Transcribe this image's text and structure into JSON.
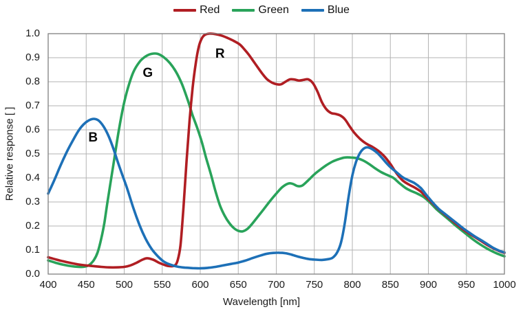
{
  "chart_data": {
    "type": "line",
    "title": "",
    "xlabel": "Wavelength [nm]",
    "ylabel": "Relative response [ ]",
    "xlim": [
      400,
      1000
    ],
    "ylim": [
      0.0,
      1.0
    ],
    "x_ticks": [
      "400",
      "450",
      "500",
      "550",
      "600",
      "650",
      "700",
      "750",
      "800",
      "850",
      "900",
      "950",
      "1000"
    ],
    "y_ticks": [
      "0.0",
      "0.1",
      "0.2",
      "0.3",
      "0.4",
      "0.5",
      "0.6",
      "0.7",
      "0.8",
      "0.9",
      "1.0"
    ],
    "grid": true,
    "grid_color": "#b3b3b3",
    "border_color": "#808080",
    "legend_position": "top-center",
    "annotations": [
      {
        "text": "B",
        "x": 459,
        "y": 0.565
      },
      {
        "text": "G",
        "x": 531,
        "y": 0.835
      },
      {
        "text": "R",
        "x": 626,
        "y": 0.915
      }
    ],
    "series": [
      {
        "name": "Green",
        "color": "#29a35a",
        "points": [
          [
            400,
            0.057
          ],
          [
            410,
            0.047
          ],
          [
            420,
            0.039
          ],
          [
            430,
            0.033
          ],
          [
            440,
            0.03
          ],
          [
            448,
            0.031
          ],
          [
            454,
            0.038
          ],
          [
            460,
            0.058
          ],
          [
            465,
            0.09
          ],
          [
            470,
            0.15
          ],
          [
            474,
            0.215
          ],
          [
            478,
            0.3
          ],
          [
            483,
            0.4
          ],
          [
            488,
            0.5
          ],
          [
            493,
            0.6
          ],
          [
            499,
            0.7
          ],
          [
            505,
            0.775
          ],
          [
            512,
            0.84
          ],
          [
            520,
            0.882
          ],
          [
            528,
            0.905
          ],
          [
            536,
            0.916
          ],
          [
            544,
            0.916
          ],
          [
            552,
            0.902
          ],
          [
            560,
            0.878
          ],
          [
            568,
            0.842
          ],
          [
            576,
            0.79
          ],
          [
            584,
            0.72
          ],
          [
            590,
            0.66
          ],
          [
            596,
            0.608
          ],
          [
            602,
            0.55
          ],
          [
            608,
            0.48
          ],
          [
            614,
            0.415
          ],
          [
            620,
            0.345
          ],
          [
            626,
            0.285
          ],
          [
            632,
            0.243
          ],
          [
            638,
            0.213
          ],
          [
            644,
            0.192
          ],
          [
            650,
            0.18
          ],
          [
            656,
            0.178
          ],
          [
            662,
            0.188
          ],
          [
            668,
            0.208
          ],
          [
            676,
            0.24
          ],
          [
            684,
            0.272
          ],
          [
            692,
            0.305
          ],
          [
            700,
            0.335
          ],
          [
            708,
            0.362
          ],
          [
            716,
            0.377
          ],
          [
            722,
            0.375
          ],
          [
            728,
            0.366
          ],
          [
            734,
            0.368
          ],
          [
            742,
            0.39
          ],
          [
            750,
            0.415
          ],
          [
            758,
            0.435
          ],
          [
            766,
            0.453
          ],
          [
            774,
            0.468
          ],
          [
            782,
            0.478
          ],
          [
            790,
            0.485
          ],
          [
            798,
            0.485
          ],
          [
            806,
            0.482
          ],
          [
            814,
            0.473
          ],
          [
            822,
            0.458
          ],
          [
            830,
            0.44
          ],
          [
            838,
            0.424
          ],
          [
            846,
            0.412
          ],
          [
            854,
            0.4
          ],
          [
            862,
            0.378
          ],
          [
            870,
            0.358
          ],
          [
            878,
            0.345
          ],
          [
            886,
            0.334
          ],
          [
            894,
            0.32
          ],
          [
            902,
            0.298
          ],
          [
            910,
            0.272
          ],
          [
            918,
            0.25
          ],
          [
            926,
            0.229
          ],
          [
            934,
            0.207
          ],
          [
            942,
            0.186
          ],
          [
            950,
            0.166
          ],
          [
            958,
            0.146
          ],
          [
            966,
            0.128
          ],
          [
            974,
            0.112
          ],
          [
            982,
            0.098
          ],
          [
            990,
            0.086
          ],
          [
            1000,
            0.074
          ]
        ]
      },
      {
        "name": "Red",
        "color": "#b01e23",
        "points": [
          [
            400,
            0.07
          ],
          [
            410,
            0.061
          ],
          [
            420,
            0.053
          ],
          [
            430,
            0.046
          ],
          [
            440,
            0.04
          ],
          [
            450,
            0.036
          ],
          [
            460,
            0.033
          ],
          [
            470,
            0.03
          ],
          [
            480,
            0.028
          ],
          [
            490,
            0.028
          ],
          [
            500,
            0.03
          ],
          [
            508,
            0.036
          ],
          [
            516,
            0.047
          ],
          [
            524,
            0.06
          ],
          [
            530,
            0.066
          ],
          [
            538,
            0.06
          ],
          [
            546,
            0.047
          ],
          [
            554,
            0.037
          ],
          [
            560,
            0.033
          ],
          [
            566,
            0.035
          ],
          [
            570,
            0.055
          ],
          [
            574,
            0.12
          ],
          [
            578,
            0.28
          ],
          [
            582,
            0.47
          ],
          [
            586,
            0.64
          ],
          [
            590,
            0.775
          ],
          [
            594,
            0.875
          ],
          [
            598,
            0.945
          ],
          [
            602,
            0.98
          ],
          [
            606,
            0.995
          ],
          [
            612,
            1.0
          ],
          [
            620,
            0.998
          ],
          [
            628,
            0.992
          ],
          [
            636,
            0.982
          ],
          [
            644,
            0.97
          ],
          [
            652,
            0.955
          ],
          [
            658,
            0.935
          ],
          [
            664,
            0.912
          ],
          [
            670,
            0.885
          ],
          [
            676,
            0.858
          ],
          [
            682,
            0.832
          ],
          [
            688,
            0.81
          ],
          [
            694,
            0.797
          ],
          [
            700,
            0.79
          ],
          [
            706,
            0.789
          ],
          [
            712,
            0.8
          ],
          [
            718,
            0.81
          ],
          [
            724,
            0.809
          ],
          [
            730,
            0.805
          ],
          [
            736,
            0.808
          ],
          [
            742,
            0.81
          ],
          [
            748,
            0.795
          ],
          [
            754,
            0.76
          ],
          [
            760,
            0.715
          ],
          [
            766,
            0.685
          ],
          [
            772,
            0.67
          ],
          [
            778,
            0.666
          ],
          [
            784,
            0.66
          ],
          [
            790,
            0.645
          ],
          [
            796,
            0.617
          ],
          [
            802,
            0.59
          ],
          [
            810,
            0.563
          ],
          [
            818,
            0.543
          ],
          [
            826,
            0.53
          ],
          [
            834,
            0.513
          ],
          [
            842,
            0.49
          ],
          [
            850,
            0.458
          ],
          [
            858,
            0.42
          ],
          [
            866,
            0.39
          ],
          [
            874,
            0.373
          ],
          [
            882,
            0.36
          ],
          [
            890,
            0.343
          ],
          [
            898,
            0.318
          ],
          [
            906,
            0.293
          ],
          [
            914,
            0.268
          ],
          [
            922,
            0.247
          ],
          [
            930,
            0.226
          ],
          [
            938,
            0.205
          ],
          [
            946,
            0.185
          ],
          [
            954,
            0.168
          ],
          [
            962,
            0.152
          ],
          [
            970,
            0.136
          ],
          [
            978,
            0.12
          ],
          [
            986,
            0.106
          ],
          [
            994,
            0.095
          ],
          [
            1000,
            0.088
          ]
        ]
      },
      {
        "name": "Blue",
        "color": "#1d70b7",
        "points": [
          [
            400,
            0.335
          ],
          [
            408,
            0.39
          ],
          [
            416,
            0.45
          ],
          [
            424,
            0.505
          ],
          [
            432,
            0.553
          ],
          [
            440,
            0.597
          ],
          [
            448,
            0.627
          ],
          [
            456,
            0.643
          ],
          [
            462,
            0.645
          ],
          [
            468,
            0.634
          ],
          [
            474,
            0.608
          ],
          [
            480,
            0.57
          ],
          [
            486,
            0.52
          ],
          [
            492,
            0.462
          ],
          [
            498,
            0.408
          ],
          [
            504,
            0.355
          ],
          [
            512,
            0.275
          ],
          [
            520,
            0.205
          ],
          [
            528,
            0.148
          ],
          [
            536,
            0.105
          ],
          [
            544,
            0.075
          ],
          [
            552,
            0.052
          ],
          [
            560,
            0.04
          ],
          [
            570,
            0.031
          ],
          [
            580,
            0.027
          ],
          [
            590,
            0.025
          ],
          [
            600,
            0.024
          ],
          [
            610,
            0.026
          ],
          [
            620,
            0.03
          ],
          [
            630,
            0.036
          ],
          [
            640,
            0.042
          ],
          [
            650,
            0.048
          ],
          [
            660,
            0.057
          ],
          [
            670,
            0.068
          ],
          [
            680,
            0.078
          ],
          [
            688,
            0.085
          ],
          [
            696,
            0.088
          ],
          [
            704,
            0.089
          ],
          [
            712,
            0.087
          ],
          [
            720,
            0.081
          ],
          [
            728,
            0.073
          ],
          [
            736,
            0.067
          ],
          [
            744,
            0.062
          ],
          [
            752,
            0.06
          ],
          [
            760,
            0.059
          ],
          [
            768,
            0.062
          ],
          [
            774,
            0.068
          ],
          [
            780,
            0.09
          ],
          [
            785,
            0.13
          ],
          [
            790,
            0.21
          ],
          [
            795,
            0.32
          ],
          [
            800,
            0.41
          ],
          [
            805,
            0.468
          ],
          [
            810,
            0.503
          ],
          [
            815,
            0.522
          ],
          [
            820,
            0.527
          ],
          [
            826,
            0.52
          ],
          [
            832,
            0.506
          ],
          [
            838,
            0.487
          ],
          [
            844,
            0.465
          ],
          [
            850,
            0.445
          ],
          [
            858,
            0.424
          ],
          [
            866,
            0.403
          ],
          [
            874,
            0.39
          ],
          [
            882,
            0.378
          ],
          [
            890,
            0.358
          ],
          [
            898,
            0.327
          ],
          [
            906,
            0.297
          ],
          [
            914,
            0.27
          ],
          [
            922,
            0.25
          ],
          [
            930,
            0.23
          ],
          [
            938,
            0.21
          ],
          [
            946,
            0.19
          ],
          [
            954,
            0.172
          ],
          [
            962,
            0.155
          ],
          [
            970,
            0.14
          ],
          [
            978,
            0.124
          ],
          [
            986,
            0.108
          ],
          [
            994,
            0.096
          ],
          [
            1000,
            0.09
          ]
        ]
      }
    ],
    "legend": [
      {
        "label": "Red",
        "color": "#b01e23"
      },
      {
        "label": "Green",
        "color": "#29a35a"
      },
      {
        "label": "Blue",
        "color": "#1d70b7"
      }
    ]
  }
}
